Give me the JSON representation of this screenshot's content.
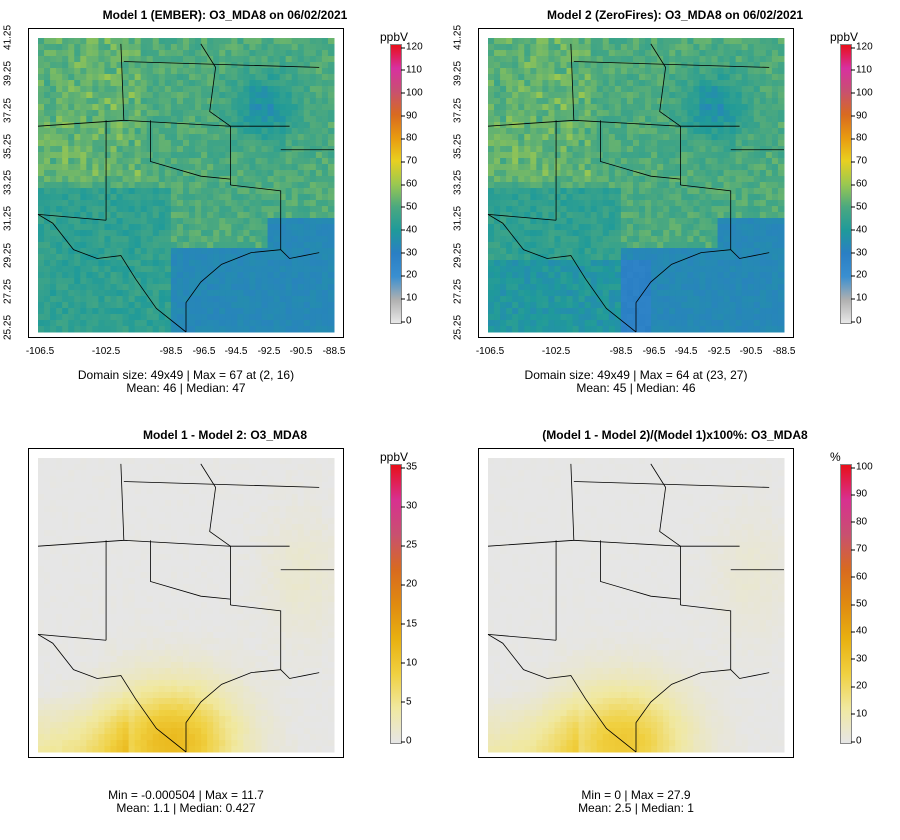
{
  "panels": [
    {
      "title": "Model 1 (EMBER): O3_MDA8 on 06/02/2021",
      "unit": "ppbV",
      "cbar_ticks": [
        "120",
        "110",
        "100",
        "90",
        "80",
        "70",
        "60",
        "50",
        "40",
        "30",
        "20",
        "10",
        "0"
      ],
      "cbar_type": "ozone",
      "x_ticks": [
        "-106.5",
        "-102.5",
        "-98.5",
        "-96.5",
        "-94.5",
        "-92.5",
        "-90.5",
        "-88.5"
      ],
      "y_ticks": [
        "41.25",
        "39.25",
        "37.25",
        "35.25",
        "33.25",
        "31.25",
        "29.25",
        "27.25",
        "25.25"
      ],
      "stats_line1": "Domain size: 49x49 | Max = 67 at (2, 16)",
      "stats_line2": "Mean: 46 |  Median: 47",
      "field": "abs1"
    },
    {
      "title": "Model 2 (ZeroFires): O3_MDA8 on 06/02/2021",
      "unit": "ppbV",
      "cbar_ticks": [
        "120",
        "110",
        "100",
        "90",
        "80",
        "70",
        "60",
        "50",
        "40",
        "30",
        "20",
        "10",
        "0"
      ],
      "cbar_type": "ozone",
      "x_ticks": [
        "-106.5",
        "-102.5",
        "-98.5",
        "-96.5",
        "-94.5",
        "-92.5",
        "-90.5",
        "-88.5"
      ],
      "y_ticks": [
        "41.25",
        "39.25",
        "37.25",
        "35.25",
        "33.25",
        "31.25",
        "29.25",
        "27.25",
        "25.25"
      ],
      "stats_line1": "Domain size: 49x49 | Max = 64 at (23, 27)",
      "stats_line2": "Mean: 45 |  Median: 46",
      "field": "abs2"
    },
    {
      "title": "Model 1 - Model 2: O3_MDA8",
      "unit": "ppbV",
      "cbar_ticks": [
        "35",
        "30",
        "25",
        "20",
        "15",
        "10",
        "5",
        "0"
      ],
      "cbar_type": "diff",
      "x_ticks": [],
      "y_ticks": [],
      "stats_line1": "Min = -0.000504 | Max = 11.7",
      "stats_line2": "Mean: 1.1 |  Median: 0.427",
      "field": "diff"
    },
    {
      "title": "(Model 1 - Model 2)/(Model 1)x100%: O3_MDA8",
      "unit": "%",
      "cbar_ticks": [
        "100",
        "90",
        "80",
        "70",
        "60",
        "50",
        "40",
        "30",
        "20",
        "10",
        "0"
      ],
      "cbar_type": "diff",
      "x_ticks": [],
      "y_ticks": [],
      "stats_line1": "Min = 0 | Max = 27.9",
      "stats_line2": "Mean: 2.5 |  Median: 1",
      "field": "pct"
    }
  ],
  "colors": {
    "ozone_scale": [
      "#e8e8e8",
      "#b0b0b0",
      "#3a8fd0",
      "#2a7fc4",
      "#1f9a9a",
      "#4aa880",
      "#9bc850",
      "#e8d020",
      "#e89a10",
      "#d86a20",
      "#c85070",
      "#d830a0",
      "#e8101a"
    ],
    "diff_scale": [
      "#e6e6e6",
      "#f0e8a0",
      "#f0d040",
      "#e8b010",
      "#e08a10",
      "#d86a20",
      "#c85070",
      "#d83090",
      "#e8101a"
    ],
    "map_lines": "#000000"
  }
}
